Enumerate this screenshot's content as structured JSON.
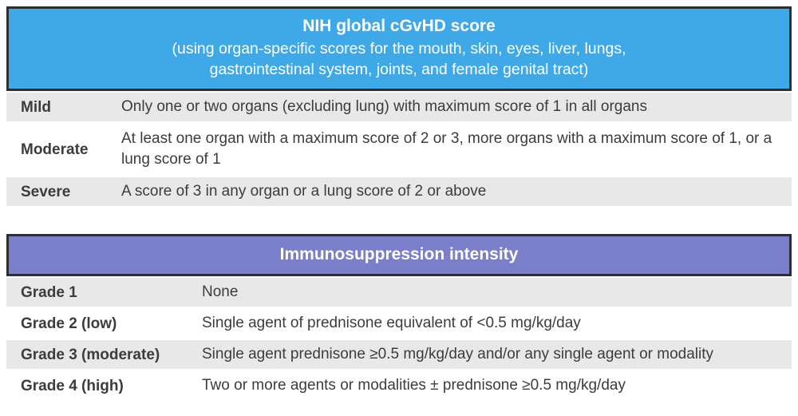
{
  "colors": {
    "header_blue": "#3fa9e8",
    "header_purple": "#7b7ec8",
    "header_border": "#2e2e2e",
    "header_text": "#ffffff",
    "row_stripe": "#e9e8e8",
    "body_text": "#3c3c3c",
    "page_background": "#ffffff"
  },
  "tables": [
    {
      "header": {
        "title": "NIH global cGvHD score",
        "subtitle": "(using organ-specific scores for the mouth, skin, eyes, liver, lungs,\ngastrointestinal system, joints, and female genital tract)"
      },
      "rows": [
        {
          "label": "Mild",
          "description": "Only one or two organs (excluding lung) with maximum score of 1 in all organs"
        },
        {
          "label": "Moderate",
          "description": "At least one organ with a maximum score of 2 or 3, more organs with a maximum score of 1, or a lung score of 1"
        },
        {
          "label": "Severe",
          "description": "A score of 3 in any organ or a lung score of 2 or above"
        }
      ]
    },
    {
      "header": {
        "title": "Immunosuppression intensity"
      },
      "rows": [
        {
          "label": "Grade 1",
          "description": "None"
        },
        {
          "label": "Grade 2 (low)",
          "description": "Single agent of prednisone equivalent of <0.5 mg/kg/day"
        },
        {
          "label": "Grade 3 (moderate)",
          "description": "Single agent prednisone ≥0.5 mg/kg/day and/or any single agent or modality"
        },
        {
          "label": "Grade 4 (high)",
          "description": "Two or more agents or modalities ± prednisone ≥0.5 mg/kg/day"
        }
      ]
    }
  ]
}
